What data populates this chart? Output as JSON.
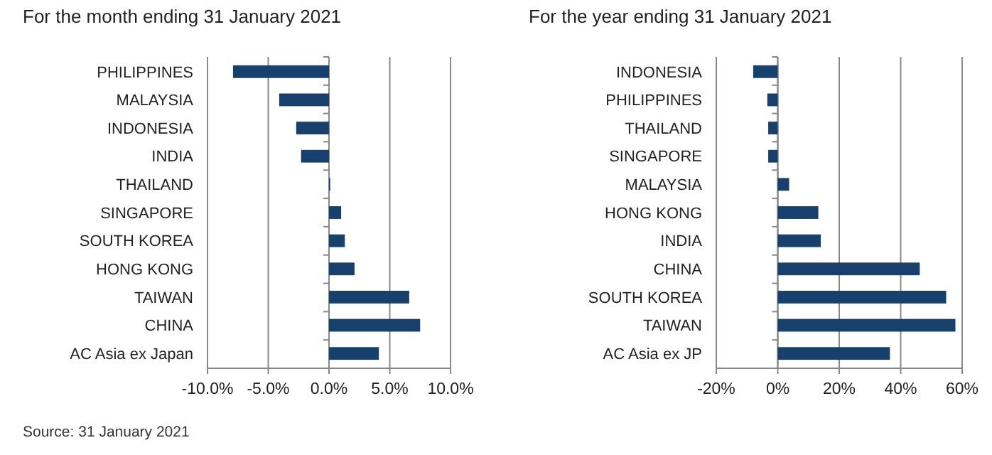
{
  "chart_data": [
    {
      "type": "bar",
      "orientation": "horizontal",
      "title": "For the month ending 31 January 2021",
      "categories": [
        "PHILIPPINES",
        "MALAYSIA",
        "INDONESIA",
        "INDIA",
        "THAILAND",
        "SINGAPORE",
        "SOUTH KOREA",
        "HONG KONG",
        "TAIWAN",
        "CHINA",
        "AC Asia ex Japan"
      ],
      "values": [
        -7.9,
        -4.1,
        -2.7,
        -2.3,
        0.1,
        1.0,
        1.3,
        2.1,
        6.6,
        7.5,
        4.1
      ],
      "color": "#17406d",
      "xlim": [
        -10,
        10
      ],
      "xticks": [
        {
          "value": -10,
          "label": "-10.0%"
        },
        {
          "value": -5,
          "label": "-5.0%"
        },
        {
          "value": 0,
          "label": "0.0%"
        },
        {
          "value": 5,
          "label": "5.0%"
        },
        {
          "value": 10,
          "label": "10.0%"
        }
      ],
      "grid": "x",
      "annotations": [
        "Source: 31 January 2021"
      ]
    },
    {
      "type": "bar",
      "orientation": "horizontal",
      "title": "For the year ending 31 January 2021",
      "categories": [
        "INDONESIA",
        "PHILIPPINES",
        "THAILAND",
        "SINGAPORE",
        "MALAYSIA",
        "HONG KONG",
        "INDIA",
        "CHINA",
        "SOUTH KOREA",
        "TAIWAN",
        "AC Asia ex JP"
      ],
      "values": [
        -8,
        -3.4,
        -3.1,
        -3.1,
        3.7,
        13.2,
        14,
        46.2,
        54.8,
        57.8,
        36.5
      ],
      "color": "#17406d",
      "xlim": [
        -20,
        60
      ],
      "xticks": [
        {
          "value": -20,
          "label": "-20%"
        },
        {
          "value": 0,
          "label": "0%"
        },
        {
          "value": 20,
          "label": "20%"
        },
        {
          "value": 40,
          "label": "40%"
        },
        {
          "value": 60,
          "label": "60%"
        }
      ],
      "grid": "x"
    }
  ]
}
